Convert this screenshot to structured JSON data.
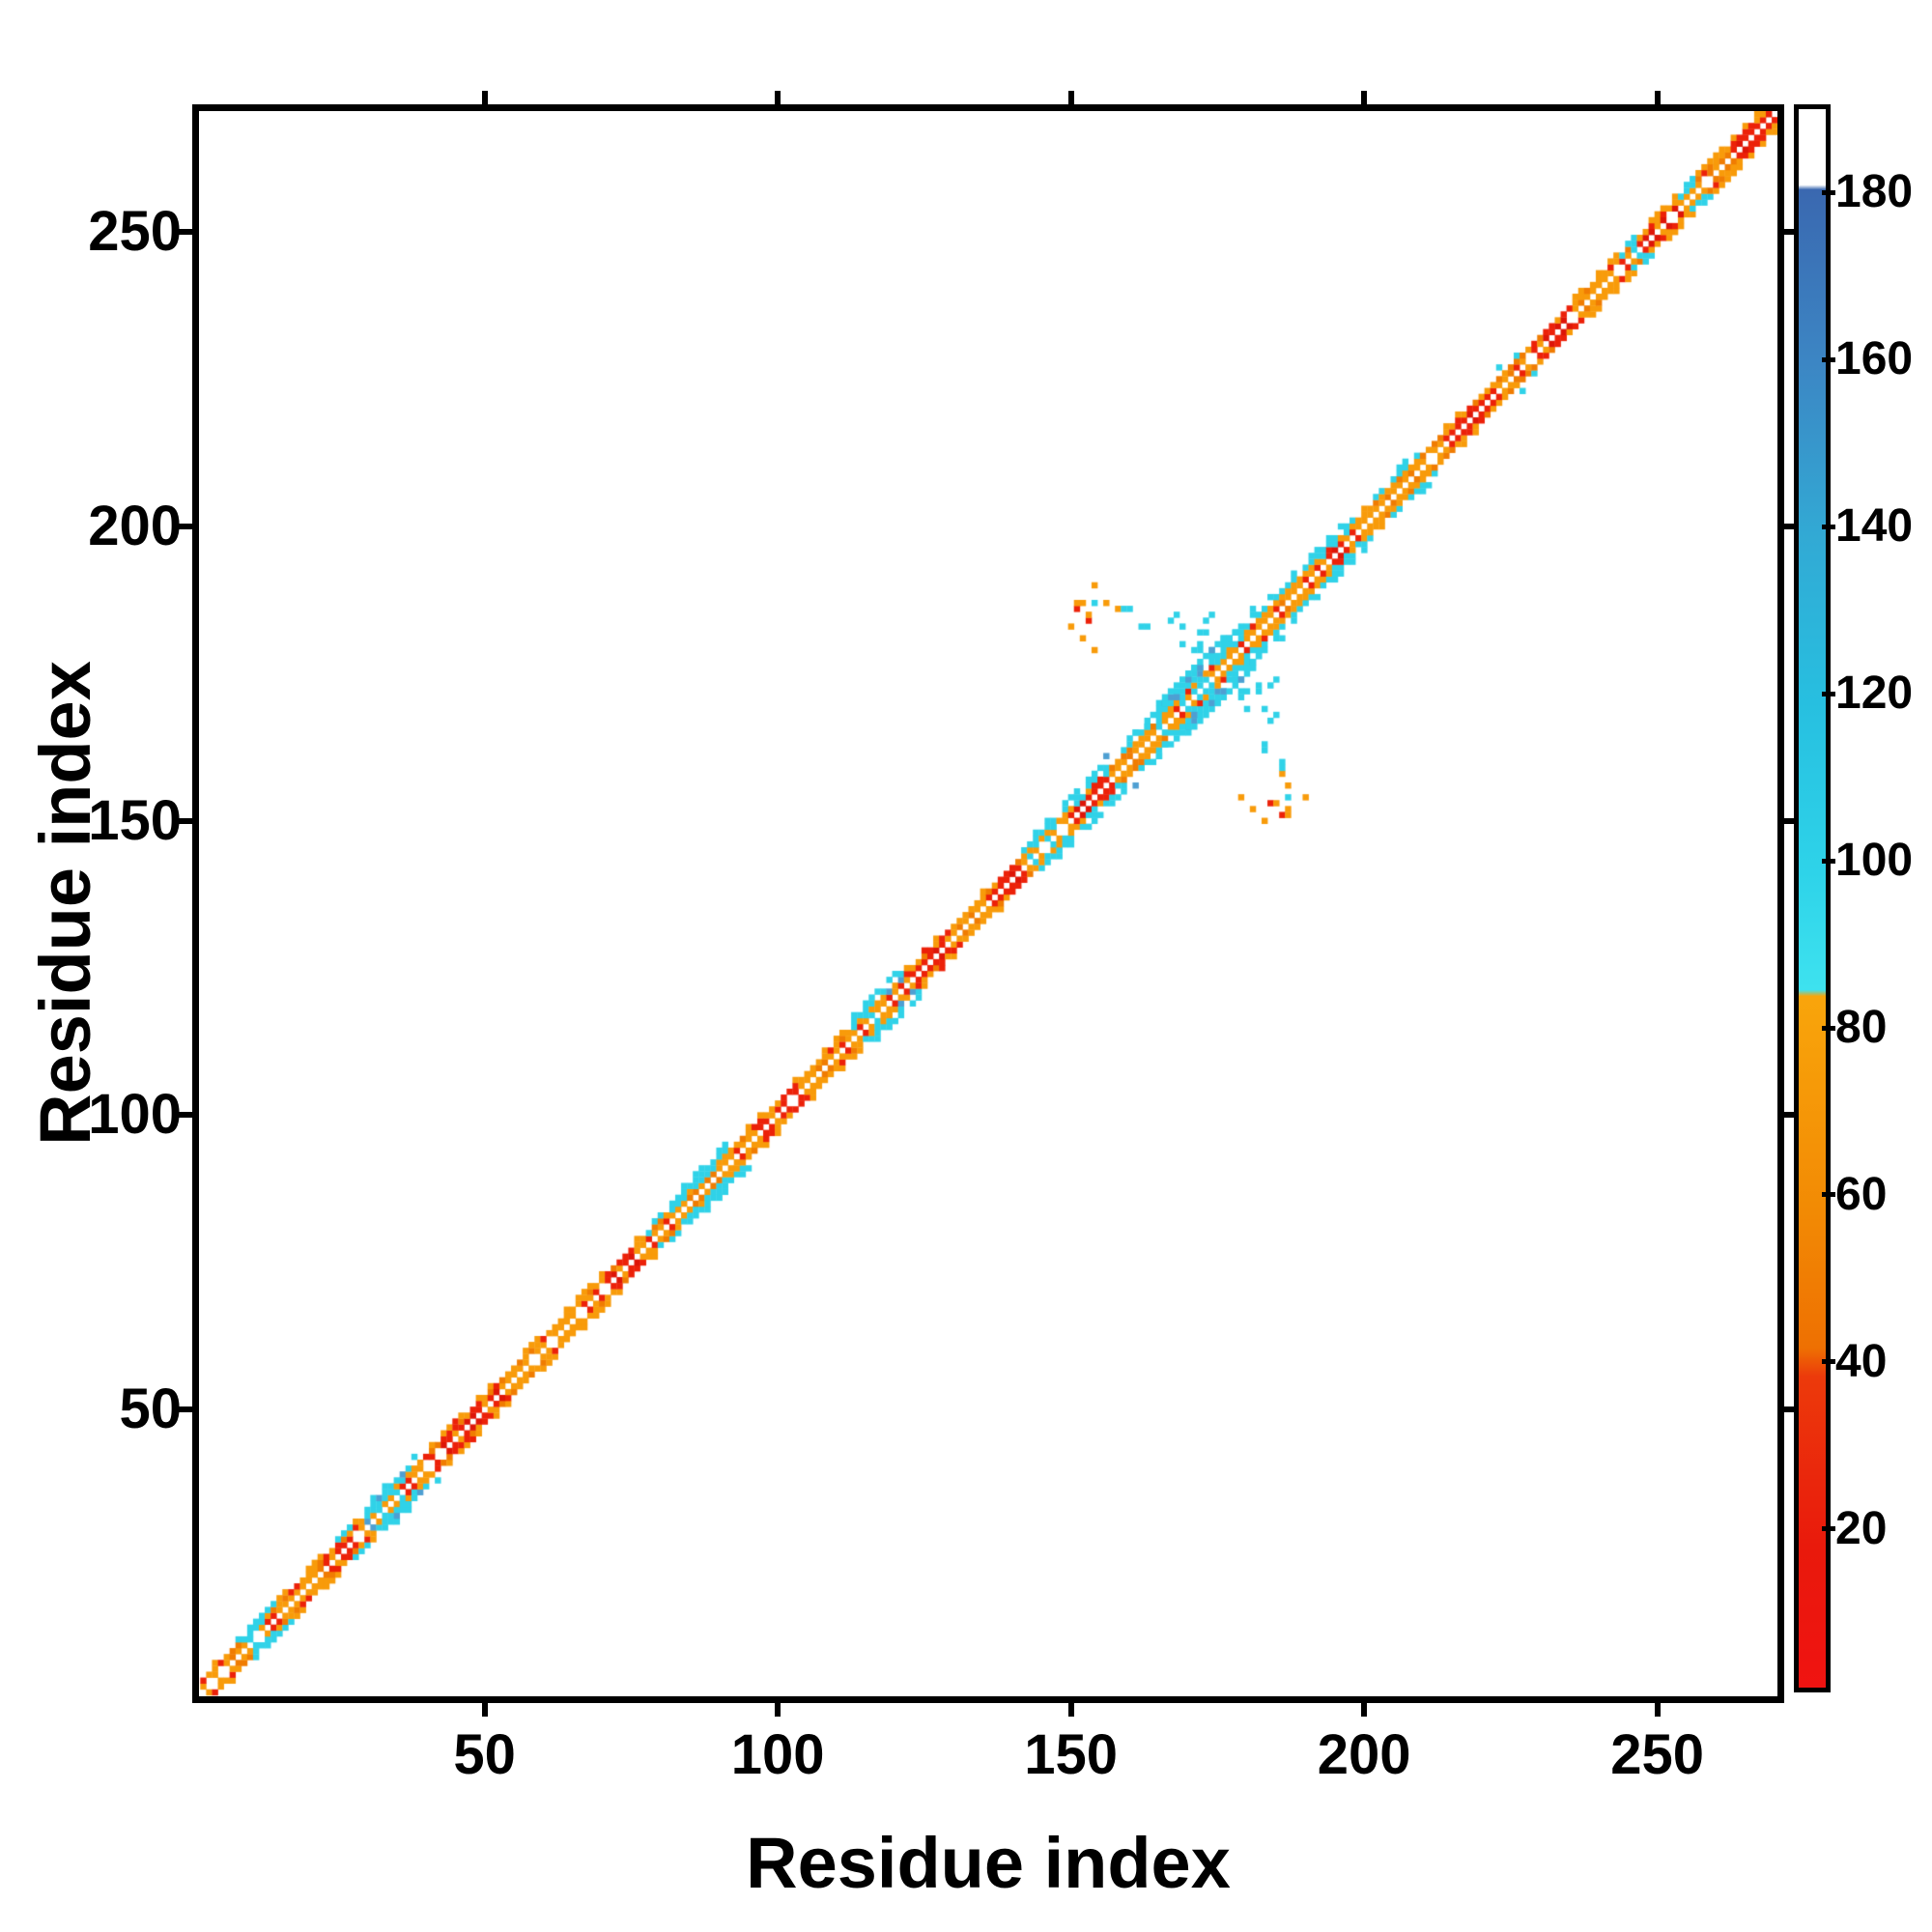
{
  "figure": {
    "background": "#ffffff",
    "frame_color": "#000000",
    "x_axis": {
      "title": "Residue index",
      "tick_labels": [
        "50",
        "100",
        "150",
        "200",
        "250"
      ]
    },
    "y_axis": {
      "title": "Residue index",
      "tick_labels": [
        "50",
        "100",
        "150",
        "200",
        "250"
      ]
    },
    "colorbar_tick_labels": [
      "180",
      "160",
      "140",
      "120",
      "100",
      "80",
      "60",
      "40",
      "20"
    ]
  },
  "chart_data": {
    "type": "heatmap",
    "subtype": "residue-contact-map",
    "title": "",
    "xlabel": "Residue index",
    "ylabel": "Residue index",
    "x_ticks": [
      50,
      100,
      150,
      200,
      250
    ],
    "y_ticks": [
      50,
      100,
      150,
      200,
      250
    ],
    "xlim": [
      1,
      270.5
    ],
    "ylim": [
      1,
      270.5
    ],
    "n_residues": 270,
    "grid": false,
    "legend_position": "colorbar-right",
    "main_diagonal": "empty-white",
    "symmetric": true,
    "colorbar": {
      "ticks": [
        20,
        40,
        60,
        80,
        100,
        120,
        140,
        160,
        180
      ],
      "value_range": [
        1,
        190
      ],
      "orientation": "vertical",
      "gradient_stops": [
        {
          "pos": 0.0,
          "color": "#ffffff"
        },
        {
          "pos": 0.048,
          "color": "#ffffff"
        },
        {
          "pos": 0.051,
          "color": "#3A68B0"
        },
        {
          "pos": 0.161,
          "color": "#3C86C4"
        },
        {
          "pos": 0.269,
          "color": "#32A9D4"
        },
        {
          "pos": 0.376,
          "color": "#27BFE0"
        },
        {
          "pos": 0.484,
          "color": "#2ED3E9"
        },
        {
          "pos": 0.558,
          "color": "#3EE2EF"
        },
        {
          "pos": 0.562,
          "color": "#F9A50B"
        },
        {
          "pos": 0.699,
          "color": "#F28A04"
        },
        {
          "pos": 0.785,
          "color": "#EE7002"
        },
        {
          "pos": 0.803,
          "color": "#EC3A0B"
        },
        {
          "pos": 0.914,
          "color": "#E9190C"
        },
        {
          "pos": 1.0,
          "color": "#F01311"
        }
      ]
    },
    "palette": {
      "o": "#F89B0A",
      "do": "#F07C02",
      "r": "#EC2109",
      "dr": "#DD1508",
      "c": "#30D2E8",
      "sb": "#4E9FD2"
    },
    "approx_value_by_color": {
      "r": 20,
      "dr": 10,
      "do": 50,
      "o": 65,
      "c": 100,
      "sb": 160
    },
    "rng_seed": 7,
    "band_styles": {
      "orange": {
        "1": [
          [
            "o",
            62
          ],
          [
            "do",
            20
          ],
          [
            "r",
            10
          ],
          [
            "none",
            8
          ]
        ],
        "2": [
          [
            "o",
            55
          ],
          [
            "do",
            30
          ],
          [
            "r",
            15
          ]
        ],
        "3": [
          [
            "o",
            35
          ],
          [
            "none",
            65
          ]
        ]
      },
      "redmix": {
        "1": [
          [
            "r",
            50
          ],
          [
            "dr",
            20
          ],
          [
            "o",
            22
          ],
          [
            "none",
            8
          ]
        ],
        "2": [
          [
            "r",
            45
          ],
          [
            "o",
            35
          ],
          [
            "do",
            20
          ]
        ],
        "3": [
          [
            "o",
            30
          ],
          [
            "r",
            10
          ],
          [
            "none",
            60
          ]
        ]
      },
      "mix": {
        "1": [
          [
            "o",
            45
          ],
          [
            "r",
            45
          ],
          [
            "none",
            10
          ]
        ],
        "2": [
          [
            "o",
            50
          ],
          [
            "r",
            30
          ],
          [
            "do",
            20
          ]
        ],
        "3": [
          [
            "o",
            25
          ],
          [
            "c",
            25
          ],
          [
            "none",
            50
          ]
        ]
      },
      "cyan3": {
        "1": [
          [
            "o",
            55
          ],
          [
            "r",
            25
          ],
          [
            "c",
            10
          ],
          [
            "none",
            10
          ]
        ],
        "2": [
          [
            "c",
            40
          ],
          [
            "o",
            45
          ],
          [
            "do",
            15
          ]
        ],
        "3": [
          [
            "c",
            65
          ],
          [
            "none",
            35
          ]
        ]
      },
      "cyan4": {
        "1": [
          [
            "o",
            60
          ],
          [
            "do",
            20
          ],
          [
            "c",
            10
          ],
          [
            "none",
            10
          ]
        ],
        "2": [
          [
            "c",
            50
          ],
          [
            "o",
            50
          ]
        ],
        "3": [
          [
            "c",
            85
          ],
          [
            "none",
            15
          ]
        ],
        "4": [
          [
            "c",
            45
          ],
          [
            "none",
            55
          ]
        ]
      },
      "cyanblue": {
        "1": [
          [
            "o",
            50
          ],
          [
            "r",
            20
          ],
          [
            "sb",
            12
          ],
          [
            "c",
            10
          ],
          [
            "none",
            8
          ]
        ],
        "2": [
          [
            "c",
            40
          ],
          [
            "sb",
            22
          ],
          [
            "o",
            38
          ]
        ],
        "3": [
          [
            "c",
            55
          ],
          [
            "sb",
            20
          ],
          [
            "none",
            25
          ]
        ],
        "4": [
          [
            "c",
            45
          ],
          [
            "none",
            55
          ]
        ]
      },
      "redcyan": {
        "1": [
          [
            "r",
            60
          ],
          [
            "dr",
            15
          ],
          [
            "o",
            25
          ]
        ],
        "2": [
          [
            "r",
            30
          ],
          [
            "o",
            35
          ],
          [
            "c",
            35
          ]
        ],
        "3": [
          [
            "c",
            70
          ],
          [
            "none",
            30
          ]
        ],
        "4": [
          [
            "c",
            35
          ],
          [
            "none",
            65
          ]
        ]
      },
      "orangecyan": {
        "1": [
          [
            "o",
            65
          ],
          [
            "do",
            20
          ],
          [
            "r",
            15
          ]
        ],
        "2": [
          [
            "o",
            70
          ],
          [
            "do",
            30
          ]
        ],
        "3": [
          [
            "c",
            60
          ],
          [
            "o",
            10
          ],
          [
            "none",
            30
          ]
        ],
        "4": [
          [
            "c",
            15
          ],
          [
            "none",
            85
          ]
        ]
      },
      "cross": {
        "1": [
          [
            "o",
            50
          ],
          [
            "r",
            30
          ],
          [
            "c",
            20
          ]
        ],
        "2": [
          [
            "c",
            45
          ],
          [
            "o",
            40
          ],
          [
            "r",
            15
          ]
        ],
        "3": [
          [
            "c",
            80
          ],
          [
            "sb",
            10
          ],
          [
            "none",
            10
          ]
        ],
        "4": [
          [
            "c",
            60
          ],
          [
            "sb",
            10
          ],
          [
            "none",
            30
          ]
        ],
        "5": [
          [
            "c",
            30
          ],
          [
            "none",
            70
          ]
        ]
      }
    },
    "band_segments": [
      {
        "from": 2,
        "to": 8,
        "style": "orange"
      },
      {
        "from": 8,
        "to": 15,
        "style": "cyan3"
      },
      {
        "from": 15,
        "to": 23,
        "style": "orange"
      },
      {
        "from": 23,
        "to": 30,
        "style": "mix"
      },
      {
        "from": 30,
        "to": 40,
        "style": "cyanblue"
      },
      {
        "from": 40,
        "to": 53,
        "style": "redmix"
      },
      {
        "from": 53,
        "to": 69,
        "style": "orange"
      },
      {
        "from": 69,
        "to": 77,
        "style": "redmix"
      },
      {
        "from": 77,
        "to": 83,
        "style": "cyan3"
      },
      {
        "from": 83,
        "to": 92,
        "style": "cyan4"
      },
      {
        "from": 92,
        "to": 97,
        "style": "orange"
      },
      {
        "from": 97,
        "to": 104,
        "style": "redmix"
      },
      {
        "from": 104,
        "to": 113,
        "style": "orange"
      },
      {
        "from": 113,
        "to": 122,
        "style": "cyanblue"
      },
      {
        "from": 122,
        "to": 129,
        "style": "redmix"
      },
      {
        "from": 129,
        "to": 136,
        "style": "orange"
      },
      {
        "from": 136,
        "to": 142,
        "style": "redmix"
      },
      {
        "from": 142,
        "to": 150,
        "style": "cyan4"
      },
      {
        "from": 150,
        "to": 157,
        "style": "redcyan"
      },
      {
        "from": 157,
        "to": 165,
        "style": "orangecyan"
      },
      {
        "from": 165,
        "to": 182,
        "style": "cross"
      },
      {
        "from": 182,
        "to": 192,
        "style": "orangecyan"
      },
      {
        "from": 192,
        "to": 198,
        "style": "redcyan"
      },
      {
        "from": 198,
        "to": 210,
        "style": "orangecyan"
      },
      {
        "from": 210,
        "to": 216,
        "style": "orange"
      },
      {
        "from": 216,
        "to": 222,
        "style": "redmix"
      },
      {
        "from": 222,
        "to": 228,
        "style": "orangecyan"
      },
      {
        "from": 228,
        "to": 236,
        "style": "redmix"
      },
      {
        "from": 236,
        "to": 244,
        "style": "orange"
      },
      {
        "from": 244,
        "to": 247,
        "style": "cyan3"
      },
      {
        "from": 247,
        "to": 254,
        "style": "redmix"
      },
      {
        "from": 254,
        "to": 257,
        "style": "cyan3"
      },
      {
        "from": 257,
        "to": 263,
        "style": "orange"
      },
      {
        "from": 263,
        "to": 270,
        "style": "redmix"
      }
    ],
    "cluster_cells": [
      [
        152,
        187,
        "o"
      ],
      [
        156,
        187,
        "o"
      ],
      [
        153,
        184,
        "r"
      ],
      [
        153,
        185,
        "o"
      ],
      [
        152,
        181,
        "o"
      ],
      [
        154,
        179,
        "o"
      ],
      [
        158,
        186,
        "o"
      ],
      [
        159,
        186,
        "c"
      ],
      [
        160,
        186,
        "c"
      ],
      [
        162,
        183,
        "c"
      ],
      [
        163,
        183,
        "c"
      ],
      [
        169,
        183,
        "c"
      ],
      [
        169,
        180,
        "c"
      ],
      [
        171,
        179,
        "c"
      ],
      [
        172,
        179,
        "c"
      ],
      [
        156,
        161,
        "sb"
      ],
      [
        154,
        187,
        "c"
      ],
      [
        151,
        186,
        "r"
      ],
      [
        151,
        187,
        "o"
      ],
      [
        150,
        183,
        "o"
      ],
      [
        154,
        190,
        "o"
      ],
      [
        166,
        170,
        "c"
      ],
      [
        166,
        171,
        "c"
      ],
      [
        167,
        172,
        "c"
      ],
      [
        168,
        171,
        "sb"
      ],
      [
        168,
        173,
        "c"
      ],
      [
        169,
        174,
        "c"
      ],
      [
        170,
        174,
        "sb"
      ],
      [
        170,
        175,
        "c"
      ],
      [
        171,
        176,
        "c"
      ],
      [
        172,
        176,
        "sb"
      ],
      [
        172,
        177,
        "c"
      ],
      [
        173,
        178,
        "c"
      ],
      [
        174,
        178,
        "c"
      ],
      [
        174,
        179,
        "sb"
      ],
      [
        175,
        180,
        "c"
      ],
      [
        176,
        180,
        "c"
      ],
      [
        176,
        181,
        "c"
      ],
      [
        177,
        181,
        "c"
      ],
      [
        178,
        182,
        "c"
      ],
      [
        160,
        164,
        "c"
      ],
      [
        161,
        165,
        "c"
      ],
      [
        163,
        166,
        "c"
      ],
      [
        164,
        168,
        "c"
      ],
      [
        165,
        169,
        "c"
      ],
      [
        167,
        184,
        "c"
      ],
      [
        168,
        185,
        "c"
      ],
      [
        172,
        180,
        "c"
      ],
      [
        172,
        182,
        "c"
      ],
      [
        173,
        182,
        "c"
      ],
      [
        173,
        184,
        "c"
      ],
      [
        174,
        185,
        "c"
      ]
    ]
  }
}
